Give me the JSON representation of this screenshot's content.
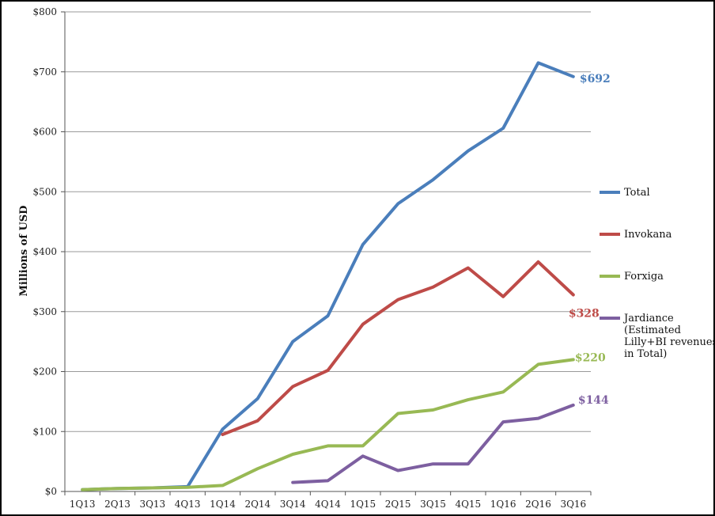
{
  "chart_data": {
    "type": "line",
    "title": "",
    "xlabel": "",
    "ylabel": "Millions of USD",
    "ylim": [
      0,
      800
    ],
    "yticks": [
      0,
      100,
      200,
      300,
      400,
      500,
      600,
      700,
      800
    ],
    "ytick_labels": [
      "$0",
      "$100",
      "$200",
      "$300",
      "$400",
      "$500",
      "$600",
      "$700",
      "$800"
    ],
    "grid": "horizontal",
    "legend_position": "right",
    "categories": [
      "1Q13",
      "2Q13",
      "3Q13",
      "4Q13",
      "1Q14",
      "2Q14",
      "3Q14",
      "4Q14",
      "1Q15",
      "2Q15",
      "3Q15",
      "4Q15",
      "1Q16",
      "2Q16",
      "3Q16"
    ],
    "series": [
      {
        "name": "Total",
        "color": "#4a7ebb",
        "values": [
          3,
          5,
          6,
          8,
          104,
          155,
          250,
          293,
          412,
          480,
          520,
          568,
          606,
          715,
          692
        ],
        "end_label": "$692"
      },
      {
        "name": "Invokana",
        "color": "#be4b48",
        "values": [
          null,
          null,
          null,
          null,
          95,
          118,
          175,
          202,
          279,
          320,
          341,
          373,
          325,
          383,
          328
        ],
        "end_label": "$328"
      },
      {
        "name": "Forxiga",
        "color": "#98b954",
        "values": [
          3,
          5,
          6,
          7,
          10,
          38,
          62,
          76,
          76,
          130,
          136,
          153,
          166,
          212,
          220
        ],
        "end_label": "$220"
      },
      {
        "name": "Jardiance (Estimated Lilly+BI revenues, in Total)",
        "legend_lines": [
          "Jardiance",
          "(Estimated",
          "Lilly+BI revenues,",
          "in Total)"
        ],
        "color": "#7d5fa0",
        "values": [
          null,
          null,
          null,
          null,
          null,
          null,
          15,
          18,
          59,
          35,
          46,
          46,
          116,
          122,
          144
        ],
        "end_label": "$144"
      }
    ]
  }
}
